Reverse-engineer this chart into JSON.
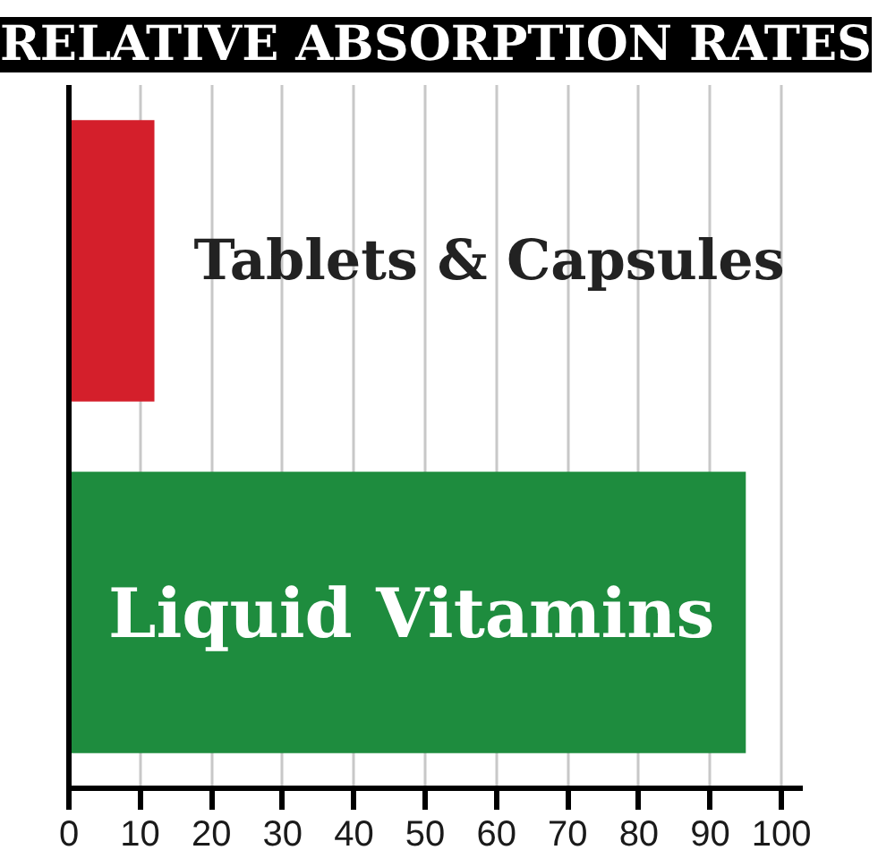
{
  "chart_data": {
    "type": "bar",
    "title": "RELATIVE ABSORPTION RATES",
    "orientation": "horizontal",
    "categories": [
      "Tablets & Capsules",
      "Liquid Vitamins"
    ],
    "values": [
      12,
      95
    ],
    "colors": [
      "#d41f2b",
      "#1e8c3e"
    ],
    "xlim": [
      0,
      103
    ],
    "xticks": [
      0,
      10,
      20,
      30,
      40,
      50,
      60,
      70,
      80,
      90,
      100
    ],
    "grid": "x"
  }
}
